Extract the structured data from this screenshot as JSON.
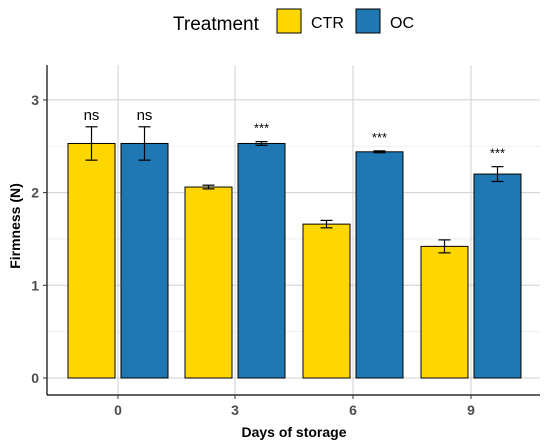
{
  "chart_data": {
    "type": "bar",
    "title": "",
    "xlabel": "Days of storage",
    "ylabel": "Firmness (N)",
    "categories": [
      "0",
      "3",
      "6",
      "9"
    ],
    "ylim": [
      0,
      3.25
    ],
    "yticks": [
      "0",
      "1",
      "2",
      "3"
    ],
    "grid": true,
    "legend": {
      "title": "Treatment",
      "position": "top"
    },
    "series": [
      {
        "name": "CTR",
        "color": "#FFD700",
        "values": [
          2.53,
          2.06,
          1.66,
          1.42
        ],
        "errors": [
          0.18,
          0.02,
          0.04,
          0.07
        ]
      },
      {
        "name": "OC",
        "color": "#1F77B4",
        "values": [
          2.53,
          2.53,
          2.44,
          2.2
        ],
        "errors": [
          0.18,
          0.02,
          0.01,
          0.08
        ]
      }
    ],
    "annotations": [
      "ns",
      "ns",
      "***",
      "***",
      "***"
    ]
  }
}
